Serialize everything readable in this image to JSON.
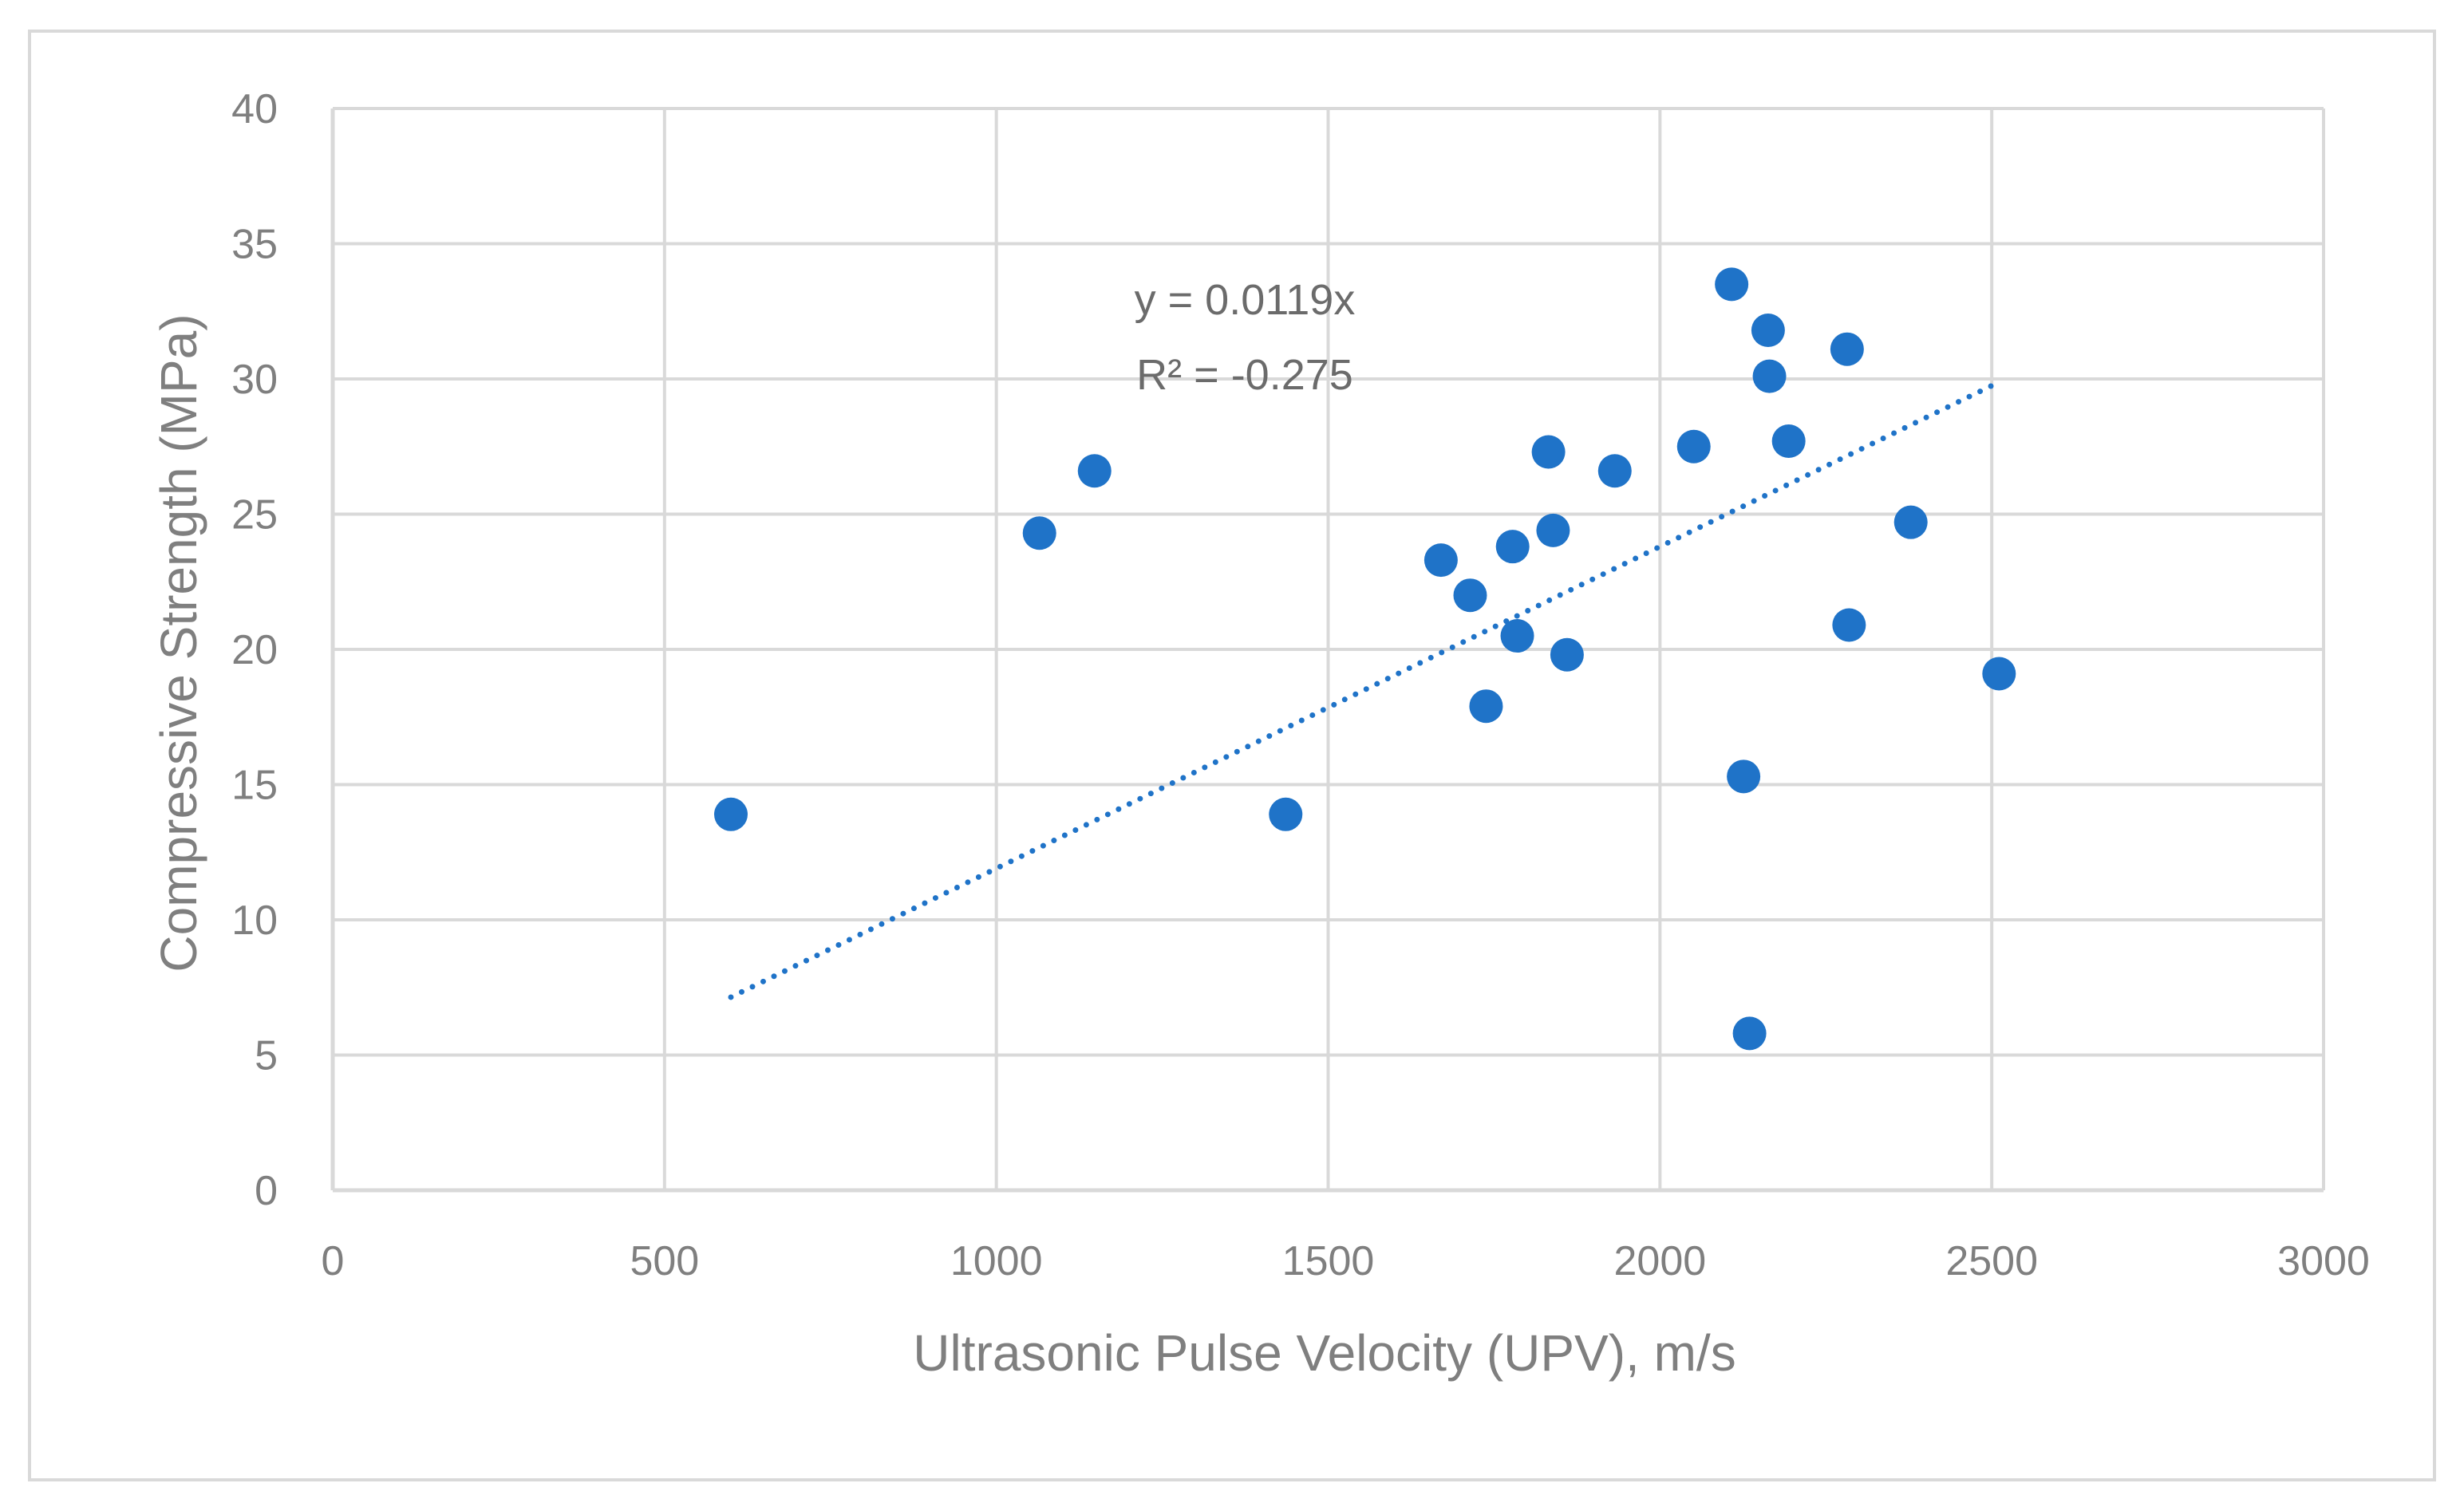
{
  "chart_data": {
    "type": "scatter",
    "title": "",
    "xlabel": "Ultrasonic Pulse Velocity (UPV), m/s",
    "ylabel": "Compressive Strength (MPa)",
    "xlim": [
      0,
      3000
    ],
    "ylim": [
      0,
      40
    ],
    "x_ticks": [
      0,
      500,
      1000,
      1500,
      2000,
      2500,
      3000
    ],
    "y_ticks": [
      0,
      5,
      10,
      15,
      20,
      25,
      30,
      35,
      40
    ],
    "grid": true,
    "legend": "none",
    "series": [
      {
        "name": "Compressive Strength",
        "color": "#1f73c8",
        "points": [
          {
            "x": 600,
            "y": 13.9
          },
          {
            "x": 1065,
            "y": 24.3
          },
          {
            "x": 1148,
            "y": 26.6
          },
          {
            "x": 1436,
            "y": 13.9
          },
          {
            "x": 1670,
            "y": 23.3
          },
          {
            "x": 1714,
            "y": 22.0
          },
          {
            "x": 1738,
            "y": 17.9
          },
          {
            "x": 1778,
            "y": 23.8
          },
          {
            "x": 1785,
            "y": 20.5
          },
          {
            "x": 1832,
            "y": 27.3
          },
          {
            "x": 1839,
            "y": 24.4
          },
          {
            "x": 1860,
            "y": 19.8
          },
          {
            "x": 1932,
            "y": 26.6
          },
          {
            "x": 2051,
            "y": 27.5
          },
          {
            "x": 2108,
            "y": 33.5
          },
          {
            "x": 2126,
            "y": 15.3
          },
          {
            "x": 2135,
            "y": 5.8
          },
          {
            "x": 2163,
            "y": 31.8
          },
          {
            "x": 2165,
            "y": 30.1
          },
          {
            "x": 2194,
            "y": 27.7
          },
          {
            "x": 2282,
            "y": 31.1
          },
          {
            "x": 2285,
            "y": 20.9
          },
          {
            "x": 2378,
            "y": 24.7
          },
          {
            "x": 2511,
            "y": 19.1
          }
        ]
      }
    ],
    "trendline": {
      "type": "linear-through-origin",
      "slope": 0.0119,
      "x_range": [
        600,
        2500
      ],
      "style": "dotted",
      "color": "#1f73c8",
      "equation": "y = 0.0119x",
      "r_squared": "R² = -0.275"
    }
  },
  "colors": {
    "background": "#ffffff",
    "frame": "#d9d9d9",
    "grid": "#d9d9d9",
    "axis_text": "#7f7f7f",
    "point": "#1f73c8"
  }
}
